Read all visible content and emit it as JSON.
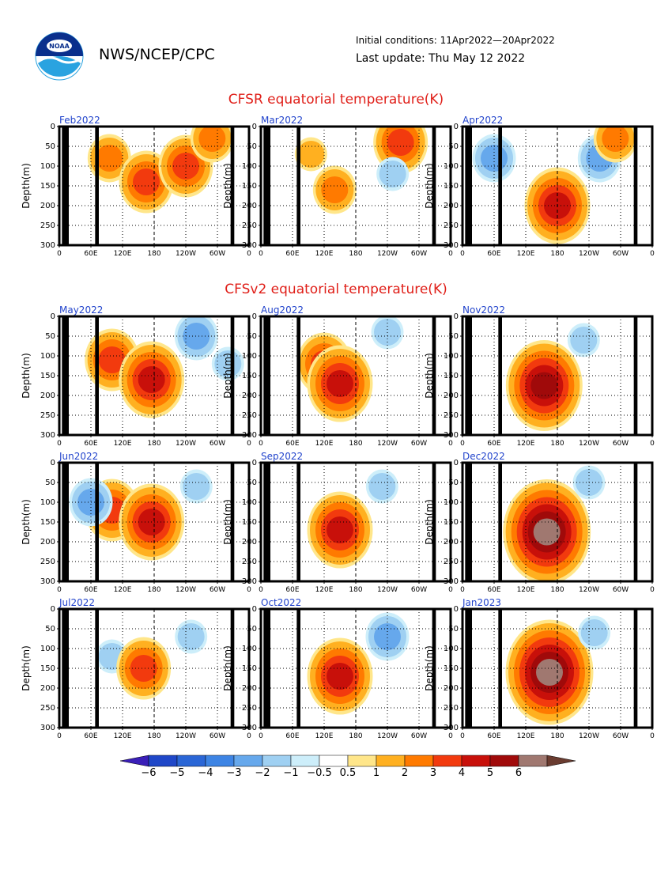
{
  "header": {
    "org": "NWS/NCEP/CPC",
    "initial_conditions": "Initial conditions: 11Apr2022—20Apr2022",
    "last_update": "Last update: Thu May 12 2022",
    "logo_text": "NOAA"
  },
  "section_cfsr": {
    "title": "CFSR equatorial temperature(K)"
  },
  "section_cfsv2": {
    "title": "CFSv2 equatorial temperature(K)"
  },
  "axes": {
    "ylabel": "Depth(m)",
    "y_ticks": [
      "0",
      "50",
      "100",
      "150",
      "200",
      "250",
      "300"
    ],
    "x_ticks": [
      "0",
      "60E",
      "120E",
      "180",
      "120W",
      "60W",
      "0"
    ]
  },
  "colorbar": {
    "labels": [
      "−6",
      "−5",
      "−4",
      "−3",
      "−2",
      "−1",
      "−0.5",
      "0.5",
      "1",
      "2",
      "3",
      "4",
      "5",
      "6"
    ],
    "colors": [
      "#3a1fb8",
      "#1f47c8",
      "#2a66d6",
      "#3d84e4",
      "#66a8ec",
      "#9fd0f2",
      "#cdeefa",
      "#ffffff",
      "#ffe68a",
      "#ffb020",
      "#ff7a00",
      "#f23a0e",
      "#c8100a",
      "#a00a0a",
      "#a07870",
      "#6a3c30"
    ]
  },
  "chart_data": [
    {
      "type": "heatmap",
      "panel": "Feb2022",
      "group": "CFSR",
      "features": [
        {
          "lon": 95,
          "depth": 80,
          "value": 2
        },
        {
          "lon": 165,
          "depth": 140,
          "value": 3
        },
        {
          "lon": 240,
          "depth": 100,
          "value": 3
        },
        {
          "lon": 290,
          "depth": 30,
          "value": 2
        }
      ]
    },
    {
      "type": "heatmap",
      "panel": "Mar2022",
      "group": "CFSR",
      "features": [
        {
          "lon": 95,
          "depth": 70,
          "value": 1
        },
        {
          "lon": 140,
          "depth": 160,
          "value": 2
        },
        {
          "lon": 265,
          "depth": 40,
          "value": 3
        },
        {
          "lon": 250,
          "depth": 120,
          "value": -1
        }
      ]
    },
    {
      "type": "heatmap",
      "panel": "Apr2022",
      "group": "CFSR",
      "features": [
        {
          "lon": 60,
          "depth": 80,
          "value": -2
        },
        {
          "lon": 180,
          "depth": 200,
          "value": 4
        },
        {
          "lon": 260,
          "depth": 80,
          "value": -2
        },
        {
          "lon": 290,
          "depth": 30,
          "value": 2
        }
      ]
    },
    {
      "type": "heatmap",
      "panel": "May2022",
      "group": "CFSv2",
      "features": [
        {
          "lon": 100,
          "depth": 110,
          "value": 3
        },
        {
          "lon": 175,
          "depth": 160,
          "value": 4
        },
        {
          "lon": 260,
          "depth": 50,
          "value": -2
        },
        {
          "lon": 320,
          "depth": 120,
          "value": -1
        }
      ]
    },
    {
      "type": "heatmap",
      "panel": "Jun2022",
      "group": "CFSv2",
      "features": [
        {
          "lon": 100,
          "depth": 120,
          "value": 3
        },
        {
          "lon": 175,
          "depth": 150,
          "value": 4
        },
        {
          "lon": 260,
          "depth": 60,
          "value": -1
        },
        {
          "lon": 60,
          "depth": 100,
          "value": -2
        }
      ]
    },
    {
      "type": "heatmap",
      "panel": "Jul2022",
      "group": "CFSv2",
      "features": [
        {
          "lon": 100,
          "depth": 120,
          "value": -1
        },
        {
          "lon": 160,
          "depth": 150,
          "value": 3
        },
        {
          "lon": 250,
          "depth": 70,
          "value": -1
        }
      ]
    },
    {
      "type": "heatmap",
      "panel": "Aug2022",
      "group": "CFSv2",
      "features": [
        {
          "lon": 120,
          "depth": 120,
          "value": 3
        },
        {
          "lon": 150,
          "depth": 170,
          "value": 4
        },
        {
          "lon": 240,
          "depth": 40,
          "value": -1
        }
      ]
    },
    {
      "type": "heatmap",
      "panel": "Sep2022",
      "group": "CFSv2",
      "features": [
        {
          "lon": 150,
          "depth": 170,
          "value": 4
        },
        {
          "lon": 230,
          "depth": 60,
          "value": -1
        }
      ]
    },
    {
      "type": "heatmap",
      "panel": "Oct2022",
      "group": "CFSv2",
      "features": [
        {
          "lon": 150,
          "depth": 170,
          "value": 4
        },
        {
          "lon": 240,
          "depth": 70,
          "value": -2
        }
      ]
    },
    {
      "type": "heatmap",
      "panel": "Nov2022",
      "group": "CFSv2",
      "features": [
        {
          "lon": 155,
          "depth": 175,
          "value": 5
        },
        {
          "lon": 230,
          "depth": 60,
          "value": -1
        }
      ]
    },
    {
      "type": "heatmap",
      "panel": "Dec2022",
      "group": "CFSv2",
      "features": [
        {
          "lon": 160,
          "depth": 175,
          "value": 6
        },
        {
          "lon": 240,
          "depth": 50,
          "value": -1
        }
      ]
    },
    {
      "type": "heatmap",
      "panel": "Jan2023",
      "group": "CFSv2",
      "features": [
        {
          "lon": 165,
          "depth": 160,
          "value": 6
        },
        {
          "lon": 250,
          "depth": 60,
          "value": -1
        }
      ]
    }
  ]
}
